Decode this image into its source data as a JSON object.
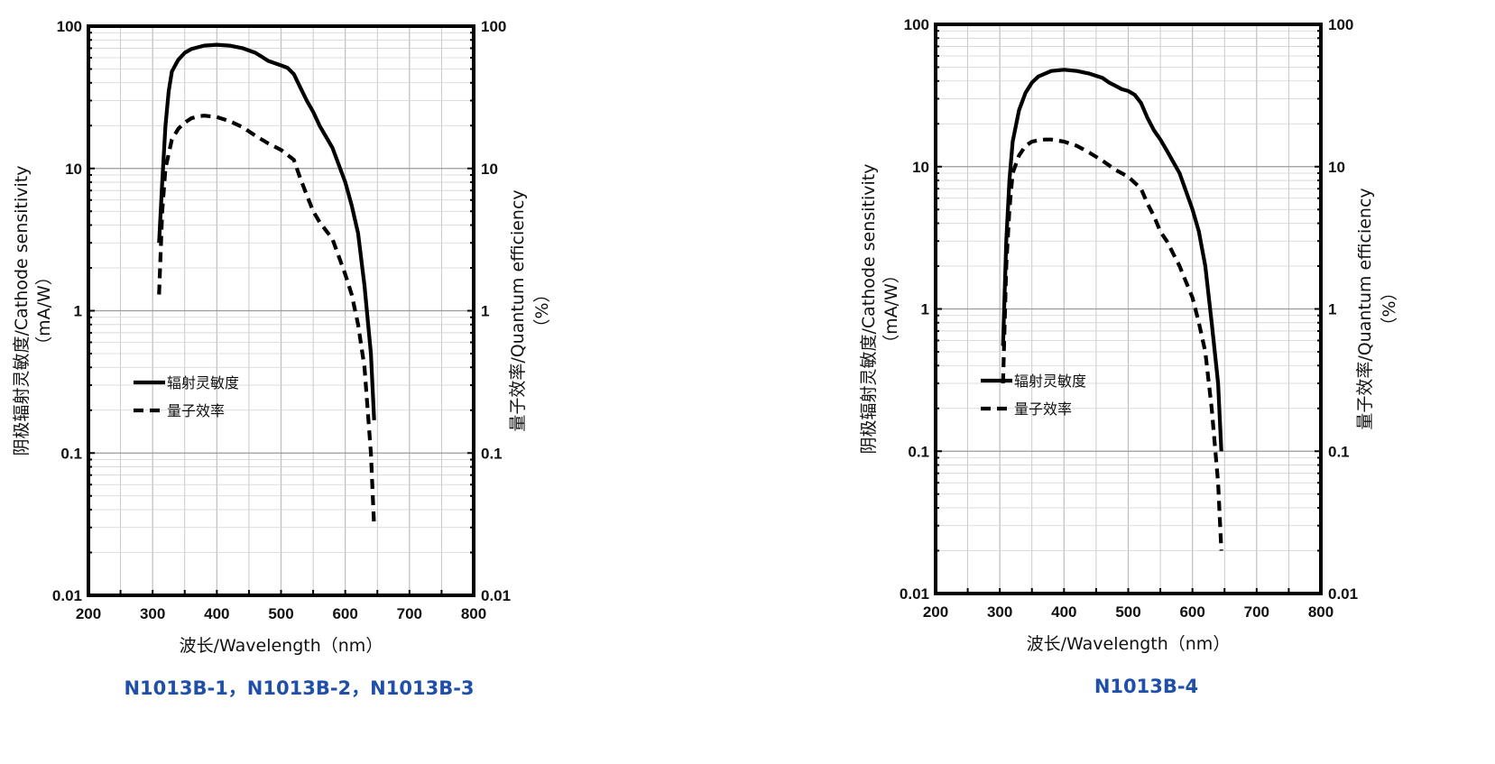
{
  "colors": {
    "curve": "#000000",
    "caption": "#1f4fa8",
    "grid": "#bdbdbd"
  },
  "chart_data": [
    {
      "type": "line",
      "caption": "N1013B-1，N1013B-2，N1013B-3",
      "xlabel": "波长/Wavelength（nm）",
      "ylabel_left": "阴极辐射灵敏度/Cathode sensitivity",
      "ylabel_left_unit": "（mA/W）",
      "ylabel_right": "量子效率/Quantum efficiency",
      "ylabel_right_unit": "（%）",
      "xlim": [
        200,
        800
      ],
      "ylim": [
        0.01,
        100
      ],
      "yscale": "log",
      "x_ticks": [
        "200",
        "300",
        "400",
        "500",
        "600",
        "700",
        "800"
      ],
      "y_ticks": [
        "0.01",
        "0.1",
        "1",
        "10",
        "100"
      ],
      "legend": "center-left",
      "series": [
        {
          "name": "辐射灵敏度",
          "style": "solid",
          "x": [
            310,
            315,
            320,
            325,
            330,
            340,
            350,
            360,
            380,
            400,
            420,
            440,
            460,
            470,
            480,
            490,
            500,
            510,
            520,
            530,
            540,
            550,
            560,
            580,
            600,
            610,
            620,
            630,
            640,
            645
          ],
          "y": [
            3,
            8,
            20,
            35,
            48,
            58,
            65,
            69,
            73,
            74,
            73,
            70,
            65,
            61,
            57,
            55,
            53,
            51,
            46,
            37,
            30,
            25,
            20,
            14,
            8,
            5.5,
            3.5,
            1.5,
            0.5,
            0.17
          ]
        },
        {
          "name": "量子效率",
          "style": "dashed",
          "x": [
            310,
            315,
            320,
            330,
            340,
            350,
            360,
            370,
            380,
            400,
            420,
            440,
            460,
            480,
            500,
            520,
            530,
            540,
            550,
            560,
            580,
            600,
            610,
            620,
            630,
            640,
            645
          ],
          "y": [
            1.3,
            5,
            10,
            16,
            19,
            21,
            22.5,
            23.2,
            23.5,
            23,
            21.5,
            19.5,
            17,
            15,
            13.5,
            11.5,
            8.5,
            6.5,
            5,
            4.2,
            3.2,
            1.8,
            1.3,
            0.8,
            0.4,
            0.1,
            0.03
          ]
        }
      ]
    },
    {
      "type": "line",
      "caption": "N1013B-4",
      "xlabel": "波长/Wavelength（nm）",
      "ylabel_left": "阴极辐射灵敏度/Cathode sensitivity",
      "ylabel_left_unit": "（mA/W）",
      "ylabel_right": "量子效率/Quantum efficiency",
      "ylabel_right_unit": "（%）",
      "xlim": [
        200,
        800
      ],
      "ylim": [
        0.01,
        100
      ],
      "yscale": "log",
      "x_ticks": [
        "200",
        "300",
        "400",
        "500",
        "600",
        "700",
        "800"
      ],
      "y_ticks": [
        "0.01",
        "0.1",
        "1",
        "10",
        "100"
      ],
      "legend": "center-left",
      "series": [
        {
          "name": "辐射灵敏度",
          "style": "solid",
          "x": [
            305,
            310,
            315,
            320,
            330,
            340,
            350,
            360,
            380,
            400,
            420,
            440,
            460,
            470,
            480,
            490,
            500,
            510,
            520,
            530,
            540,
            550,
            560,
            580,
            600,
            610,
            620,
            630,
            640,
            645
          ],
          "y": [
            0.55,
            3,
            8,
            15,
            25,
            33,
            39,
            43,
            47,
            48,
            47,
            45,
            42,
            39,
            37,
            35,
            34,
            32,
            28,
            22,
            18,
            15.5,
            13,
            9,
            5,
            3.5,
            2,
            0.8,
            0.3,
            0.1
          ]
        },
        {
          "name": "量子效率",
          "style": "dashed",
          "x": [
            305,
            310,
            315,
            320,
            330,
            340,
            350,
            360,
            370,
            380,
            400,
            420,
            440,
            460,
            480,
            500,
            520,
            530,
            540,
            550,
            560,
            580,
            600,
            610,
            620,
            630,
            640,
            645
          ],
          "y": [
            0.3,
            2,
            5,
            9,
            12,
            14,
            15,
            15.3,
            15.5,
            15.5,
            15,
            14,
            12.5,
            11,
            9.5,
            8.5,
            7,
            5.5,
            4.5,
            3.5,
            3,
            2,
            1.2,
            0.8,
            0.5,
            0.2,
            0.06,
            0.02
          ]
        }
      ]
    }
  ]
}
